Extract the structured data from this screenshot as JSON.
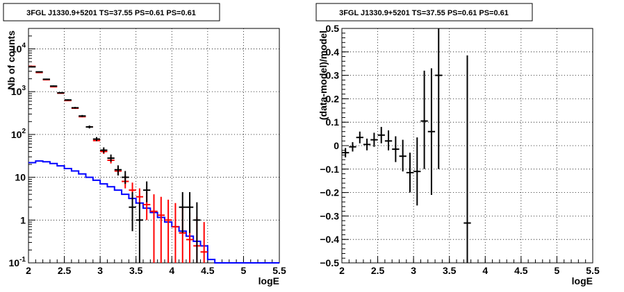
{
  "chart_data": [
    {
      "type": "histogram",
      "title": "3FGL J1330.9+5201 TS=37.55 PS=0.61 PS=0.61",
      "xlabel": "logE",
      "ylabel": "Nb of counts",
      "xlim": [
        2,
        5.5
      ],
      "ylim": [
        0.1,
        30000
      ],
      "yscale": "log",
      "grid": true,
      "x_ticks": [
        "2",
        "2.5",
        "3",
        "3.5",
        "4",
        "4.5",
        "5",
        "5.5"
      ],
      "y_ticks": [
        {
          "base": "10",
          "exp": "-1",
          "label": "10⁻¹"
        },
        {
          "base": "1",
          "exp": "",
          "label": "1"
        },
        {
          "base": "10",
          "exp": "",
          "label": "10"
        },
        {
          "base": "10",
          "exp": "2",
          "label": "10²"
        },
        {
          "base": "10",
          "exp": "3",
          "label": "10³"
        },
        {
          "base": "10",
          "exp": "4",
          "label": "10⁴"
        }
      ],
      "bin_width": 0.1,
      "series": [
        {
          "kind": "data_black",
          "color": "#000000",
          "points": [
            {
              "x": 2.05,
              "y": 3800,
              "lo": 3700,
              "hi": 3900
            },
            {
              "x": 2.15,
              "y": 2900,
              "lo": 2820,
              "hi": 2980
            },
            {
              "x": 2.25,
              "y": 1950,
              "lo": 1890,
              "hi": 2010
            },
            {
              "x": 2.35,
              "y": 1350,
              "lo": 1300,
              "hi": 1400
            },
            {
              "x": 2.45,
              "y": 940,
              "lo": 905,
              "hi": 975
            },
            {
              "x": 2.55,
              "y": 640,
              "lo": 615,
              "hi": 665
            },
            {
              "x": 2.65,
              "y": 420,
              "lo": 400,
              "hi": 440
            },
            {
              "x": 2.75,
              "y": 270,
              "lo": 255,
              "hi": 285
            },
            {
              "x": 2.85,
              "y": 150,
              "lo": 138,
              "hi": 162
            },
            {
              "x": 2.95,
              "y": 78,
              "lo": 70,
              "hi": 87
            },
            {
              "x": 3.05,
              "y": 43,
              "lo": 37,
              "hi": 50
            },
            {
              "x": 3.15,
              "y": 28,
              "lo": 23,
              "hi": 34
            },
            {
              "x": 3.25,
              "y": 15,
              "lo": 11,
              "hi": 19
            },
            {
              "x": 3.35,
              "y": 10,
              "lo": 7,
              "hi": 14
            },
            {
              "x": 3.45,
              "y": 2,
              "lo": 0.55,
              "hi": 4.5
            },
            {
              "x": 3.55,
              "y": 1,
              "lo": 0.1,
              "hi": 2.6
            },
            {
              "x": 3.65,
              "y": 5,
              "lo": 2.6,
              "hi": 8
            },
            {
              "x": 4.15,
              "y": 2,
              "lo": 0.5,
              "hi": 4.5
            },
            {
              "x": 4.25,
              "y": 2,
              "lo": 0.5,
              "hi": 4.5
            },
            {
              "x": 4.35,
              "y": 1,
              "lo": 0.1,
              "hi": 2.6
            }
          ]
        },
        {
          "kind": "model_red",
          "color": "#ff0000",
          "points": [
            {
              "x": 2.05,
              "y": 3900,
              "lo": 3900,
              "hi": 3900
            },
            {
              "x": 2.15,
              "y": 2800,
              "lo": 2800,
              "hi": 2800
            },
            {
              "x": 2.25,
              "y": 1900,
              "lo": 1900,
              "hi": 1900
            },
            {
              "x": 2.35,
              "y": 1300,
              "lo": 1300,
              "hi": 1300
            },
            {
              "x": 2.45,
              "y": 920,
              "lo": 920,
              "hi": 920
            },
            {
              "x": 2.55,
              "y": 620,
              "lo": 620,
              "hi": 620
            },
            {
              "x": 2.65,
              "y": 410,
              "lo": 410,
              "hi": 410
            },
            {
              "x": 2.75,
              "y": 260,
              "lo": 260,
              "hi": 260
            },
            {
              "x": 2.85,
              "y": 150,
              "lo": 150,
              "hi": 150
            },
            {
              "x": 2.95,
              "y": 72,
              "lo": 72,
              "hi": 72
            },
            {
              "x": 3.05,
              "y": 40,
              "lo": 35,
              "hi": 46
            },
            {
              "x": 3.15,
              "y": 25,
              "lo": 21,
              "hi": 30
            },
            {
              "x": 3.25,
              "y": 14,
              "lo": 11,
              "hi": 17
            },
            {
              "x": 3.35,
              "y": 8,
              "lo": 5.5,
              "hi": 11
            },
            {
              "x": 3.45,
              "y": 5,
              "lo": 3,
              "hi": 7.5
            },
            {
              "x": 3.55,
              "y": 3.5,
              "lo": 2,
              "hi": 5.5
            },
            {
              "x": 3.65,
              "y": 2.3,
              "lo": 1,
              "hi": 4.5
            },
            {
              "x": 3.75,
              "y": 1.6,
              "lo": 0.1,
              "hi": 4
            },
            {
              "x": 3.85,
              "y": 1.3,
              "lo": 0.1,
              "hi": 3.5
            },
            {
              "x": 3.95,
              "y": 1,
              "lo": 0.1,
              "hi": 3
            },
            {
              "x": 4.05,
              "y": 0.7,
              "lo": 0.1,
              "hi": 2.5
            },
            {
              "x": 4.15,
              "y": 0.5,
              "lo": 0.1,
              "hi": 2
            },
            {
              "x": 4.25,
              "y": 0.35,
              "lo": 0.1,
              "hi": 1.5
            },
            {
              "x": 4.35,
              "y": 0.25,
              "lo": 0.1,
              "hi": 1.2
            },
            {
              "x": 4.45,
              "y": 0.18,
              "lo": 0.1,
              "hi": 0.9
            }
          ]
        },
        {
          "kind": "step_blue",
          "color": "#0000ff",
          "edges": [
            2.0,
            2.1,
            2.2,
            2.3,
            2.4,
            2.5,
            2.6,
            2.7,
            2.8,
            2.9,
            3.0,
            3.1,
            3.2,
            3.3,
            3.4,
            3.5,
            3.6,
            3.7,
            3.8,
            3.9,
            4.0,
            4.1,
            4.2,
            4.3,
            4.4,
            4.5,
            4.6,
            4.7,
            4.8,
            4.9,
            5.0,
            5.1,
            5.2,
            5.3,
            5.4,
            5.5
          ],
          "values": [
            22,
            24,
            23,
            21,
            18.5,
            16,
            14,
            12,
            10,
            8.5,
            7,
            6,
            5,
            4,
            3.2,
            2.5,
            1.9,
            1.5,
            1.15,
            0.9,
            0.7,
            0.55,
            0.42,
            0.32,
            0.25,
            0.12,
            0.1,
            0.1,
            0.1,
            0.1,
            0.1,
            0.1,
            0.1,
            0.1,
            0.1
          ]
        }
      ]
    },
    {
      "type": "errorbar",
      "title": "3FGL J1330.9+5201 TS=37.55 PS=0.61 PS=0.61",
      "xlabel": "logE",
      "ylabel": "(data-model)/model",
      "xlim": [
        2,
        5.5
      ],
      "ylim": [
        -0.5,
        0.5
      ],
      "grid": true,
      "x_ticks": [
        "2",
        "2.5",
        "3",
        "3.5",
        "4",
        "4.5",
        "5",
        "5.5"
      ],
      "y_ticks": [
        "−0.5",
        "−0.4",
        "−0.3",
        "−0.2",
        "−0.1",
        "0",
        "0.1",
        "0.2",
        "0.3",
        "0.4",
        "0.5"
      ],
      "y_tick_values": [
        -0.5,
        -0.4,
        -0.3,
        -0.2,
        -0.1,
        0,
        0.1,
        0.2,
        0.3,
        0.4,
        0.5
      ],
      "bin_width": 0.1,
      "series": [
        {
          "kind": "residuals",
          "color": "#000000",
          "points": [
            {
              "x": 2.05,
              "y": -0.03,
              "lo": -0.05,
              "hi": -0.01
            },
            {
              "x": 2.15,
              "y": -0.005,
              "lo": -0.025,
              "hi": 0.015
            },
            {
              "x": 2.25,
              "y": 0.035,
              "lo": 0.01,
              "hi": 0.06
            },
            {
              "x": 2.35,
              "y": 0.005,
              "lo": -0.02,
              "hi": 0.03
            },
            {
              "x": 2.45,
              "y": 0.025,
              "lo": -0.005,
              "hi": 0.055
            },
            {
              "x": 2.55,
              "y": 0.045,
              "lo": 0.01,
              "hi": 0.08
            },
            {
              "x": 2.65,
              "y": 0.02,
              "lo": -0.02,
              "hi": 0.065
            },
            {
              "x": 2.75,
              "y": -0.015,
              "lo": -0.07,
              "hi": 0.04
            },
            {
              "x": 2.85,
              "y": -0.045,
              "lo": -0.11,
              "hi": 0.025
            },
            {
              "x": 2.95,
              "y": -0.115,
              "lo": -0.2,
              "hi": -0.03
            },
            {
              "x": 3.05,
              "y": -0.11,
              "lo": -0.255,
              "hi": 0.035
            },
            {
              "x": 3.15,
              "y": 0.105,
              "lo": -0.1,
              "hi": 0.32
            },
            {
              "x": 3.25,
              "y": 0.06,
              "lo": -0.21,
              "hi": 0.33
            },
            {
              "x": 3.35,
              "y": 0.3,
              "lo": -0.1,
              "hi": 0.5
            },
            {
              "x": 3.75,
              "y": -0.33,
              "lo": -0.5,
              "hi": 0.385
            }
          ]
        }
      ]
    }
  ]
}
